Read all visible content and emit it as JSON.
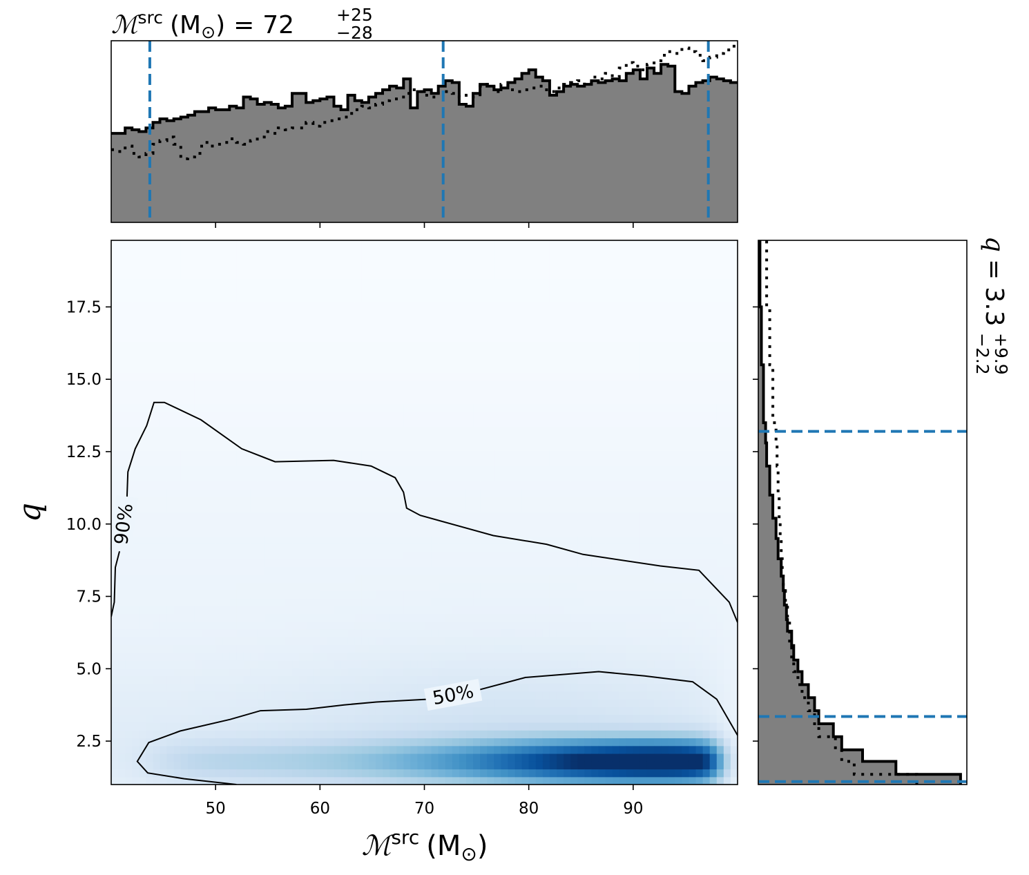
{
  "chart_data": [
    {
      "type": "heatmap",
      "name": "joint-posterior",
      "xlabel_symbol": "ℳ",
      "xlabel_sup": "src",
      "xlabel_unit": "(M",
      "xlabel_unit_sub": "⊙",
      "xlabel_unit_close": ")",
      "ylabel": "q",
      "xlim": [
        40,
        100
      ],
      "ylim": [
        1.0,
        19.8
      ],
      "xticks": [
        50,
        60,
        70,
        80,
        90
      ],
      "yticks": [
        2.5,
        5.0,
        7.5,
        10.0,
        12.5,
        15.0,
        17.5
      ],
      "ytick_labels": [
        "2.5",
        "5.0",
        "7.5",
        "10.0",
        "12.5",
        "15.0",
        "17.5"
      ],
      "colormap": "Blues",
      "density_peak": {
        "x": 93.5,
        "y": 1.8
      },
      "contours": [
        {
          "label": "90%",
          "points": [
            [
              40,
              6.8
            ],
            [
              40.3,
              7.3
            ],
            [
              40.4,
              8.5
            ],
            [
              40.9,
              9.2
            ],
            [
              41.5,
              10.8
            ],
            [
              41.6,
              11.8
            ],
            [
              42.3,
              12.6
            ],
            [
              43.4,
              13.4
            ],
            [
              44.1,
              14.2
            ],
            [
              45.1,
              14.2
            ],
            [
              48.6,
              13.6
            ],
            [
              52.5,
              12.6
            ],
            [
              55.7,
              12.15
            ],
            [
              61.3,
              12.2
            ],
            [
              64.9,
              12.0
            ],
            [
              67.2,
              11.6
            ],
            [
              68,
              11.1
            ],
            [
              68.3,
              10.55
            ],
            [
              69.6,
              10.3
            ],
            [
              76.6,
              9.6
            ],
            [
              81.7,
              9.3
            ],
            [
              85.2,
              8.95
            ],
            [
              92.6,
              8.55
            ],
            [
              96.3,
              8.4
            ],
            [
              99.2,
              7.3
            ],
            [
              100,
              6.6
            ]
          ]
        },
        {
          "label": "50%",
          "points": [
            [
              52,
              1.0
            ],
            [
              47,
              1.2
            ],
            [
              43.5,
              1.4
            ],
            [
              42.5,
              1.8
            ],
            [
              43.6,
              2.45
            ],
            [
              46.6,
              2.85
            ],
            [
              51.4,
              3.25
            ],
            [
              54.3,
              3.55
            ],
            [
              58.7,
              3.6
            ],
            [
              62.3,
              3.75
            ],
            [
              65.4,
              3.85
            ],
            [
              70.5,
              3.95
            ],
            [
              75,
              4.25
            ],
            [
              79.7,
              4.7
            ],
            [
              86.7,
              4.9
            ],
            [
              91.1,
              4.75
            ],
            [
              95.7,
              4.55
            ],
            [
              98,
              3.95
            ],
            [
              100,
              2.7
            ]
          ]
        }
      ]
    },
    {
      "type": "bar",
      "name": "chirp-mass-marginal",
      "title_symbol": "ℳ",
      "title_sup": "src",
      "title_unit": "(M",
      "title_unit_sub": "⊙",
      "title_unit_close": ")",
      "title_eq": "=",
      "median": "72",
      "plus": "+25",
      "minus": "−28",
      "quantile_lines_x": [
        43.7,
        71.8,
        97.2
      ],
      "bin_edges": [
        40,
        100
      ],
      "series": [
        {
          "style": "filled-step",
          "values": [
            0.49,
            0.49,
            0.52,
            0.51,
            0.5,
            0.52,
            0.55,
            0.57,
            0.56,
            0.57,
            0.58,
            0.59,
            0.61,
            0.61,
            0.63,
            0.62,
            0.62,
            0.64,
            0.63,
            0.69,
            0.68,
            0.65,
            0.66,
            0.65,
            0.63,
            0.64,
            0.71,
            0.71,
            0.66,
            0.67,
            0.68,
            0.69,
            0.64,
            0.62,
            0.7,
            0.67,
            0.66,
            0.69,
            0.71,
            0.73,
            0.75,
            0.74,
            0.79,
            0.63,
            0.72,
            0.73,
            0.71,
            0.75,
            0.78,
            0.77,
            0.65,
            0.64,
            0.71,
            0.76,
            0.75,
            0.73,
            0.74,
            0.77,
            0.79,
            0.82,
            0.84,
            0.8,
            0.78,
            0.7,
            0.72,
            0.75,
            0.76,
            0.75,
            0.76,
            0.78,
            0.77,
            0.78,
            0.79,
            0.78,
            0.82,
            0.84,
            0.79,
            0.85,
            0.82,
            0.87,
            0.86,
            0.72,
            0.71,
            0.75,
            0.77,
            0.78,
            0.8,
            0.79,
            0.78,
            0.77
          ]
        },
        {
          "style": "dotted-step",
          "values": [
            0.4,
            0.39,
            0.42,
            0.38,
            0.36,
            0.38,
            0.43,
            0.45,
            0.47,
            0.43,
            0.35,
            0.36,
            0.38,
            0.44,
            0.42,
            0.43,
            0.44,
            0.46,
            0.44,
            0.43,
            0.45,
            0.47,
            0.5,
            0.49,
            0.52,
            0.51,
            0.52,
            0.52,
            0.55,
            0.53,
            0.55,
            0.56,
            0.57,
            0.58,
            0.6,
            0.62,
            0.64,
            0.63,
            0.65,
            0.67,
            0.68,
            0.68,
            0.71,
            0.73,
            0.72,
            0.7,
            0.69,
            0.72,
            0.72,
            0.71,
            0.69,
            0.7,
            0.69,
            0.75,
            0.76,
            0.72,
            0.76,
            0.73,
            0.72,
            0.73,
            0.74,
            0.75,
            0.73,
            0.72,
            0.74,
            0.76,
            0.77,
            0.78,
            0.76,
            0.8,
            0.79,
            0.82,
            0.8,
            0.85,
            0.88,
            0.86,
            0.84,
            0.87,
            0.89,
            0.92,
            0.94,
            0.93,
            0.96,
            0.94,
            0.92,
            0.89,
            0.91,
            0.93,
            0.95,
            0.97
          ]
        }
      ]
    },
    {
      "type": "bar",
      "name": "mass-ratio-marginal",
      "title_symbol": "q",
      "title_eq": "=",
      "median": "3.3",
      "plus": "+9.9",
      "minus": "−2.2",
      "quantile_lines_y": [
        1.1,
        3.35,
        13.2
      ],
      "series": [
        {
          "style": "filled-step",
          "bins": [
            [
              1.0,
              1.35,
              0.97
            ],
            [
              1.35,
              1.8,
              0.66
            ],
            [
              1.8,
              2.2,
              0.5
            ],
            [
              2.2,
              2.65,
              0.4
            ],
            [
              2.65,
              3.1,
              0.36
            ],
            [
              3.1,
              3.55,
              0.29
            ],
            [
              3.55,
              4.0,
              0.27
            ],
            [
              4.0,
              4.45,
              0.24
            ],
            [
              4.45,
              4.9,
              0.21
            ],
            [
              4.9,
              5.3,
              0.19
            ],
            [
              5.3,
              5.8,
              0.17
            ],
            [
              5.8,
              6.3,
              0.16
            ],
            [
              6.3,
              6.7,
              0.14
            ],
            [
              6.7,
              7.2,
              0.135
            ],
            [
              7.2,
              7.7,
              0.125
            ],
            [
              7.7,
              8.2,
              0.12
            ],
            [
              8.2,
              8.8,
              0.11
            ],
            [
              8.8,
              9.5,
              0.095
            ],
            [
              9.5,
              10.2,
              0.085
            ],
            [
              10.2,
              11.0,
              0.07
            ],
            [
              11.0,
              12.0,
              0.055
            ],
            [
              12.0,
              12.8,
              0.04
            ],
            [
              12.8,
              13.5,
              0.035
            ],
            [
              13.5,
              15.5,
              0.025
            ],
            [
              15.5,
              17.5,
              0.015
            ],
            [
              17.5,
              19.8,
              0.008
            ]
          ]
        },
        {
          "style": "dotted-step",
          "bins": [
            [
              1.0,
              1.35,
              0.76
            ],
            [
              1.35,
              1.8,
              0.46
            ],
            [
              1.8,
              2.2,
              0.4
            ],
            [
              2.2,
              2.65,
              0.37
            ],
            [
              2.65,
              3.1,
              0.29
            ],
            [
              3.1,
              3.55,
              0.27
            ],
            [
              3.55,
              4.0,
              0.24
            ],
            [
              4.0,
              4.45,
              0.21
            ],
            [
              4.45,
              4.9,
              0.19
            ],
            [
              4.9,
              5.3,
              0.17
            ],
            [
              5.3,
              5.8,
              0.16
            ],
            [
              5.8,
              6.3,
              0.15
            ],
            [
              6.3,
              6.7,
              0.15
            ],
            [
              6.7,
              7.2,
              0.14
            ],
            [
              7.2,
              7.7,
              0.13
            ],
            [
              7.7,
              8.2,
              0.12
            ],
            [
              8.2,
              8.8,
              0.115
            ],
            [
              8.8,
              9.5,
              0.11
            ],
            [
              9.5,
              10.2,
              0.105
            ],
            [
              10.2,
              11.0,
              0.1
            ],
            [
              11.0,
              12.0,
              0.095
            ],
            [
              12.0,
              12.8,
              0.09
            ],
            [
              12.8,
              13.5,
              0.085
            ],
            [
              13.5,
              15.5,
              0.07
            ],
            [
              15.5,
              17.5,
              0.055
            ],
            [
              17.5,
              19.8,
              0.04
            ]
          ]
        }
      ]
    }
  ],
  "colors": {
    "quantile_line": "#1f77b4",
    "hist_fill": "#808080",
    "outline": "#000000"
  }
}
